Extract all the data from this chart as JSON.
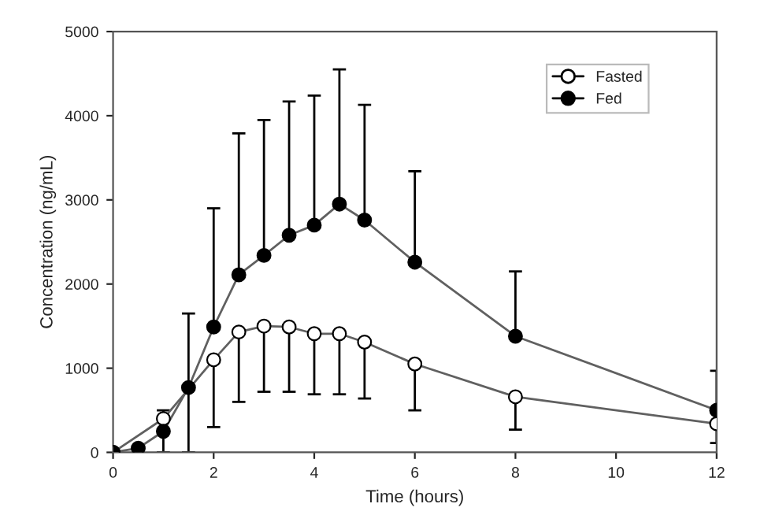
{
  "chart_data": {
    "type": "line",
    "xlabel": "Time (hours)",
    "ylabel": "Concentration (ng/mL)",
    "x": [
      0,
      0.5,
      1,
      1.5,
      2,
      2.5,
      3,
      3.5,
      4,
      4.5,
      5,
      6,
      8,
      12
    ],
    "series": [
      {
        "name": "Fasted",
        "color": "#ffffff",
        "values": [
          0,
          null,
          400,
          null,
          1100,
          1430,
          1500,
          1490,
          1410,
          1410,
          1310,
          1050,
          660,
          340
        ],
        "errors": [
          null,
          null,
          [
            0,
            400
          ],
          null,
          [
            300,
            1100
          ],
          [
            600,
            1430
          ],
          [
            720,
            1500
          ],
          [
            720,
            1490
          ],
          [
            690,
            1410
          ],
          [
            690,
            1410
          ],
          [
            640,
            1310
          ],
          [
            500,
            1050
          ],
          [
            270,
            660
          ],
          [
            110,
            340
          ]
        ]
      },
      {
        "name": "Fed",
        "color": "#000000",
        "values": [
          0,
          50,
          250,
          770,
          1490,
          2110,
          2340,
          2580,
          2700,
          2950,
          2760,
          2260,
          1380,
          500
        ],
        "errors": [
          null,
          null,
          [
            250,
            500
          ],
          [
            0,
            1650
          ],
          [
            1490,
            2900
          ],
          [
            2110,
            3790
          ],
          [
            2340,
            3950
          ],
          [
            2580,
            4170
          ],
          [
            2700,
            4240
          ],
          [
            2950,
            4550
          ],
          [
            2760,
            4130
          ],
          [
            2260,
            3340
          ],
          [
            1380,
            2150
          ],
          [
            500,
            970
          ]
        ]
      }
    ],
    "xlim": [
      0,
      12
    ],
    "xticks": [
      0,
      2,
      4,
      6,
      8,
      10,
      12
    ],
    "ylim": [
      0,
      5000
    ],
    "yticks": [
      0,
      1000,
      2000,
      3000,
      4000,
      5000
    ],
    "grid": false,
    "legend": "top right",
    "marker": "circle",
    "line_style": "solid"
  }
}
